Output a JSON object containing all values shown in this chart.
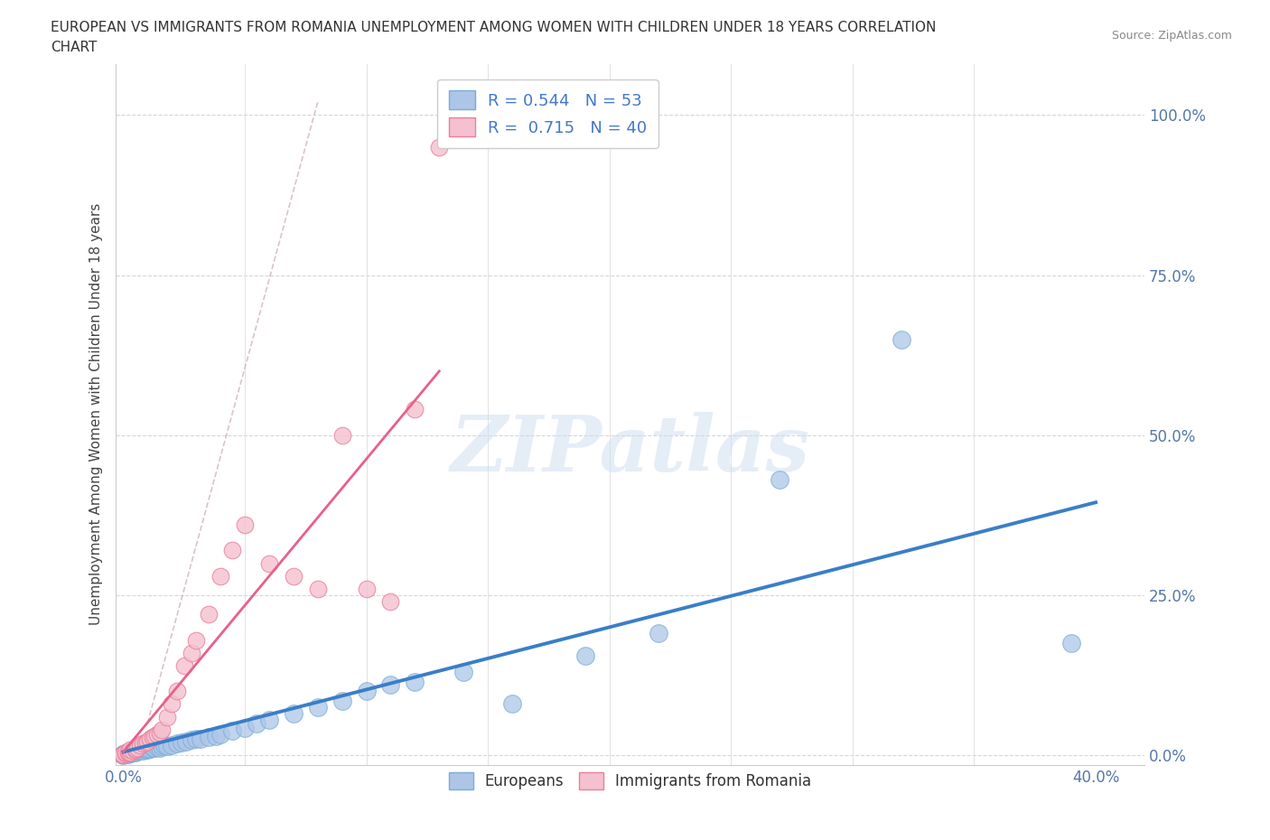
{
  "title_line1": "EUROPEAN VS IMMIGRANTS FROM ROMANIA UNEMPLOYMENT AMONG WOMEN WITH CHILDREN UNDER 18 YEARS CORRELATION",
  "title_line2": "CHART",
  "source": "Source: ZipAtlas.com",
  "ylabel_ticks": [
    0.0,
    0.25,
    0.5,
    0.75,
    1.0
  ],
  "ylabel_label": "Unemployment Among Women with Children Under 18 years",
  "xlim": [
    -0.003,
    0.42
  ],
  "ylim": [
    -0.015,
    1.08
  ],
  "blue_R": 0.544,
  "blue_N": 53,
  "pink_R": 0.715,
  "pink_N": 40,
  "blue_color": "#adc6e8",
  "blue_edge_color": "#7aacd6",
  "pink_color": "#f5c0d0",
  "pink_edge_color": "#e8809a",
  "pink_line_color": "#e8608a",
  "blue_line_color": "#3a7ec8",
  "watermark_text": "ZIPatlas",
  "legend_label_blue": "Europeans",
  "legend_label_pink": "Immigrants from Romania",
  "blue_scatter_x": [
    0.0,
    0.0,
    0.0,
    0.001,
    0.001,
    0.002,
    0.002,
    0.003,
    0.003,
    0.004,
    0.005,
    0.005,
    0.006,
    0.007,
    0.008,
    0.009,
    0.01,
    0.01,
    0.011,
    0.012,
    0.013,
    0.014,
    0.015,
    0.016,
    0.017,
    0.018,
    0.02,
    0.022,
    0.024,
    0.026,
    0.028,
    0.03,
    0.032,
    0.035,
    0.038,
    0.04,
    0.045,
    0.05,
    0.055,
    0.06,
    0.07,
    0.08,
    0.09,
    0.1,
    0.11,
    0.12,
    0.14,
    0.16,
    0.19,
    0.22,
    0.27,
    0.32,
    0.39
  ],
  "blue_scatter_y": [
    0.0,
    0.001,
    0.002,
    0.001,
    0.003,
    0.002,
    0.004,
    0.003,
    0.005,
    0.004,
    0.005,
    0.006,
    0.007,
    0.008,
    0.007,
    0.009,
    0.008,
    0.01,
    0.01,
    0.011,
    0.012,
    0.013,
    0.012,
    0.014,
    0.015,
    0.014,
    0.016,
    0.018,
    0.02,
    0.022,
    0.024,
    0.025,
    0.026,
    0.028,
    0.03,
    0.032,
    0.038,
    0.042,
    0.05,
    0.055,
    0.065,
    0.075,
    0.085,
    0.1,
    0.11,
    0.115,
    0.13,
    0.08,
    0.155,
    0.19,
    0.43,
    0.65,
    0.175
  ],
  "pink_scatter_x": [
    0.0,
    0.0,
    0.001,
    0.001,
    0.002,
    0.002,
    0.003,
    0.003,
    0.004,
    0.005,
    0.005,
    0.006,
    0.007,
    0.008,
    0.009,
    0.01,
    0.011,
    0.012,
    0.013,
    0.014,
    0.015,
    0.016,
    0.018,
    0.02,
    0.022,
    0.025,
    0.028,
    0.03,
    0.035,
    0.04,
    0.045,
    0.05,
    0.06,
    0.07,
    0.08,
    0.09,
    0.1,
    0.11,
    0.12,
    0.13
  ],
  "pink_scatter_y": [
    0.0,
    0.002,
    0.003,
    0.005,
    0.004,
    0.006,
    0.005,
    0.008,
    0.007,
    0.008,
    0.01,
    0.012,
    0.015,
    0.018,
    0.02,
    0.022,
    0.025,
    0.028,
    0.03,
    0.032,
    0.035,
    0.04,
    0.06,
    0.08,
    0.1,
    0.14,
    0.16,
    0.18,
    0.22,
    0.28,
    0.32,
    0.36,
    0.3,
    0.28,
    0.26,
    0.5,
    0.26,
    0.24,
    0.54,
    0.95
  ],
  "blue_trend_x": [
    0.0,
    0.4
  ],
  "blue_trend_y": [
    0.005,
    0.395
  ],
  "pink_trend_x": [
    0.0,
    0.13
  ],
  "pink_trend_y": [
    0.005,
    0.6
  ]
}
